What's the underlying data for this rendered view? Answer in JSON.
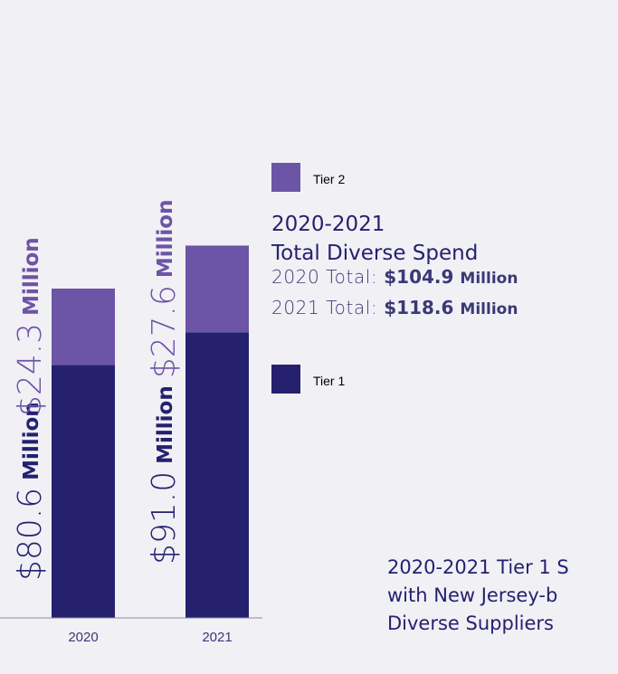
{
  "chart_data": {
    "type": "bar",
    "stacked": true,
    "categories": [
      "2020",
      "2021"
    ],
    "series": [
      {
        "name": "Tier 1",
        "values": [
          80.6,
          91.0
        ],
        "labels": [
          "$80.6",
          "$91.0"
        ],
        "color": "#25216f"
      },
      {
        "name": "Tier 2",
        "values": [
          24.3,
          27.6
        ],
        "labels": [
          "$24.3",
          "$27.6"
        ],
        "color": "#6c54a6"
      }
    ],
    "unit_label": "Million",
    "title_lines": [
      "2020-2021",
      "Total Diverse Spend"
    ],
    "totals": [
      {
        "prefix": "2020 Total: ",
        "amount": "$104.9",
        "unit": "Million"
      },
      {
        "prefix": "2021 Total: ",
        "amount": "$118.6",
        "unit": "Million"
      }
    ],
    "legend": [
      {
        "label": "Tier 2",
        "color": "#6c54a6"
      },
      {
        "label": "Tier 1",
        "color": "#25216f"
      }
    ]
  },
  "footer_text": [
    "2020-2021 Tier 1 S",
    "with New Jersey-b",
    "Diverse Suppliers"
  ]
}
